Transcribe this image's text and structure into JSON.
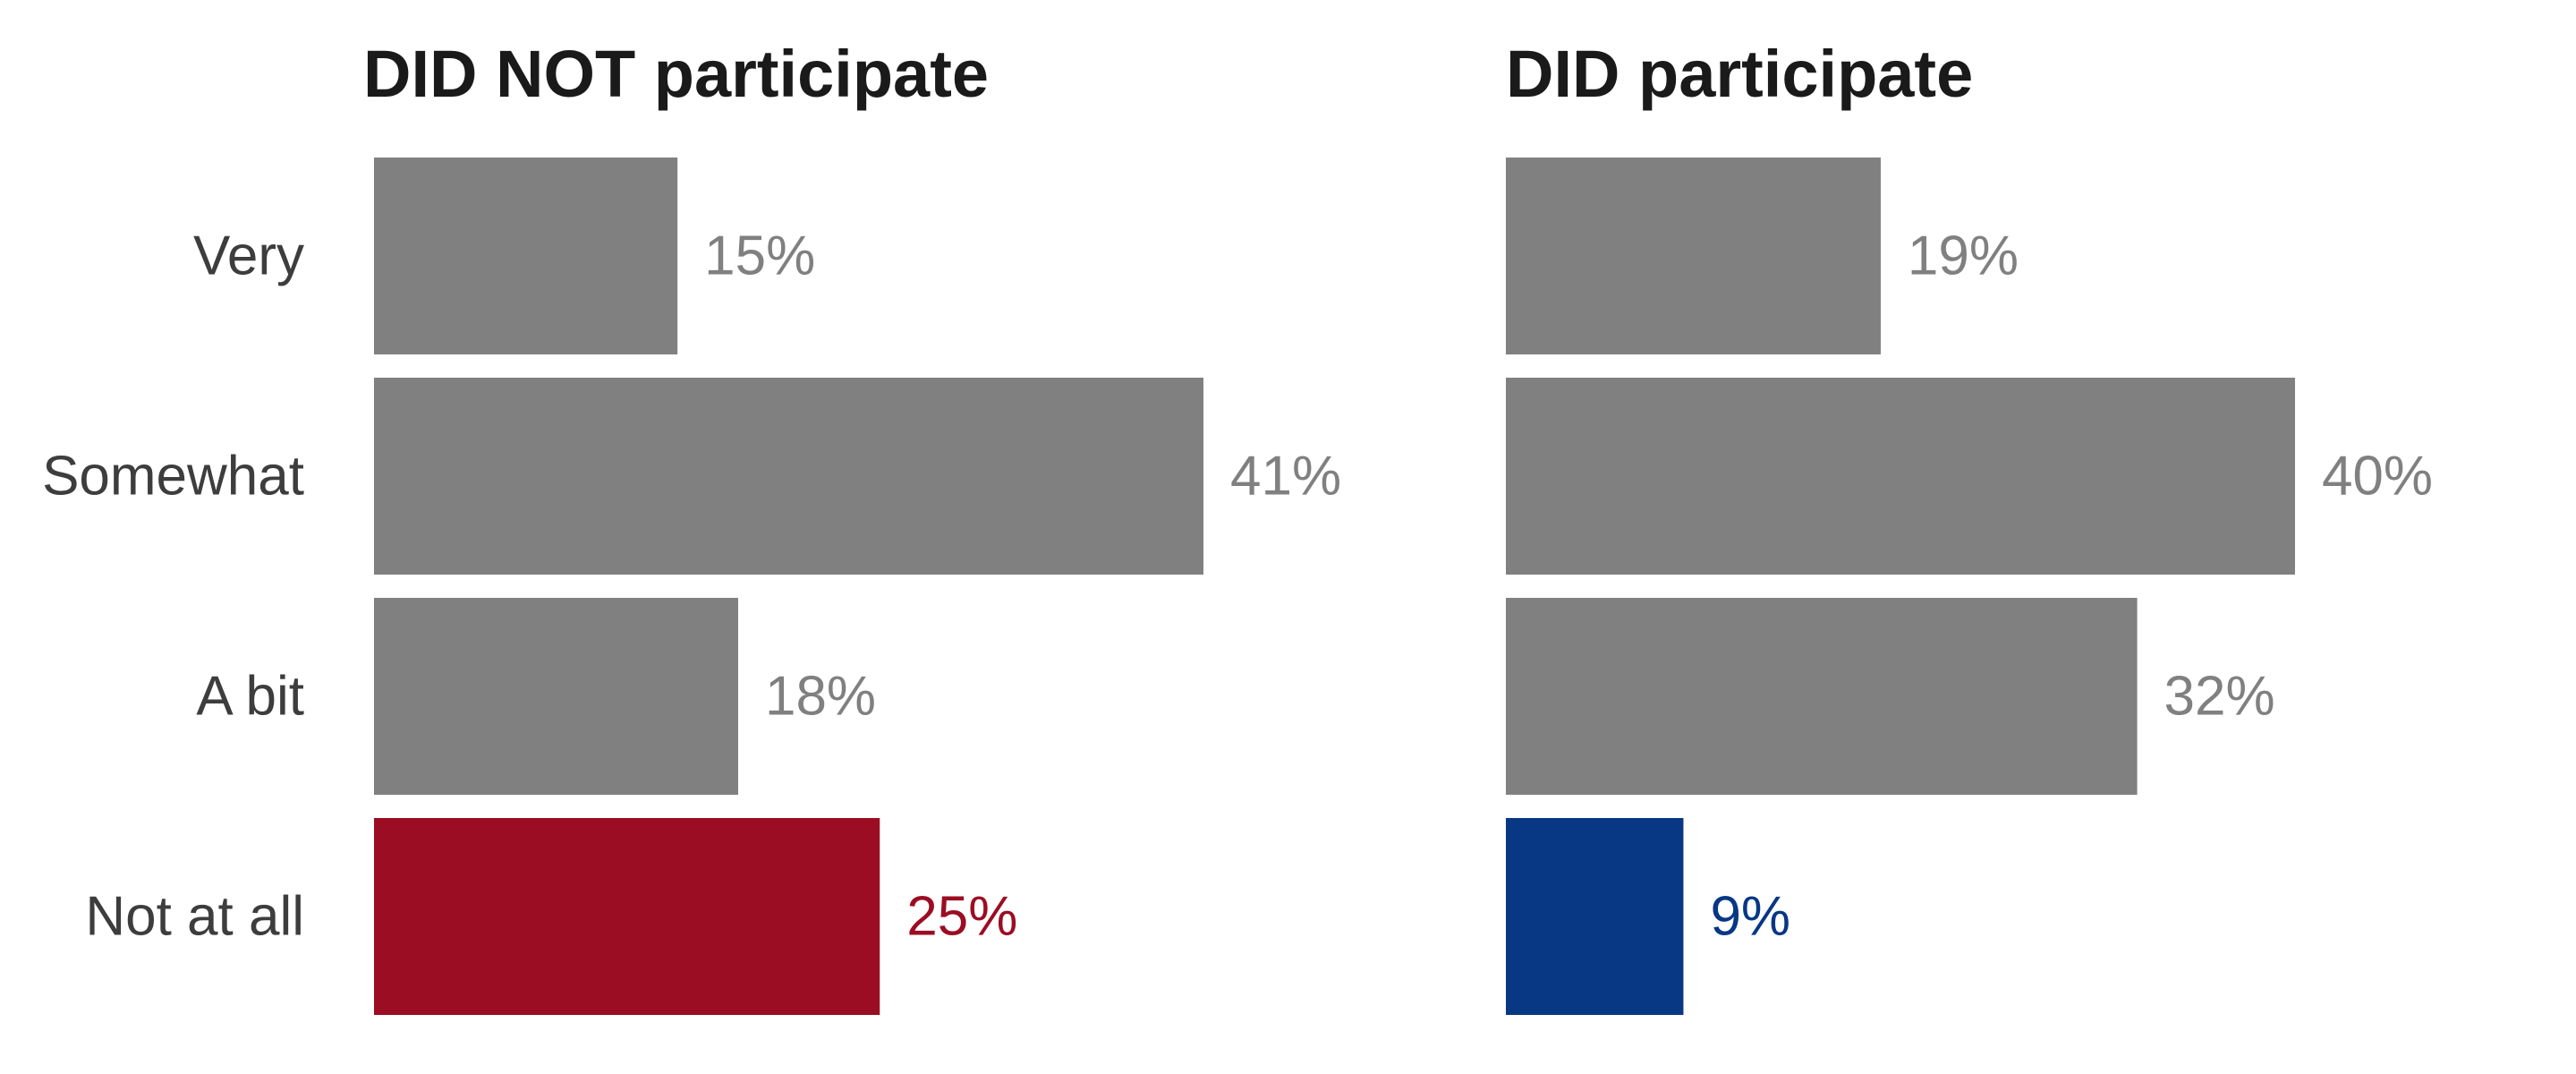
{
  "chart_data": [
    {
      "type": "bar",
      "title": "DID NOT participate",
      "categories": [
        "Very",
        "Somewhat",
        "A bit",
        "Not at all"
      ],
      "values": [
        15,
        41,
        18,
        25
      ],
      "value_labels": [
        "15%",
        "41%",
        "18%",
        "25%"
      ],
      "colors": [
        "#808080",
        "#808080",
        "#808080",
        "#9b0d23"
      ],
      "label_colors": [
        "#808080",
        "#808080",
        "#808080",
        "#9b0d23"
      ],
      "orientation": "horizontal",
      "xlim": [
        0,
        41
      ],
      "grid": false
    },
    {
      "type": "bar",
      "title": "DID participate",
      "categories": [
        "Very",
        "Somewhat",
        "A bit",
        "Not at all"
      ],
      "values": [
        19,
        40,
        32,
        9
      ],
      "value_labels": [
        "19%",
        "40%",
        "32%",
        "9%"
      ],
      "colors": [
        "#808080",
        "#808080",
        "#808080",
        "#083784"
      ],
      "label_colors": [
        "#808080",
        "#808080",
        "#808080",
        "#083784"
      ],
      "orientation": "horizontal",
      "xlim": [
        0,
        41
      ],
      "grid": false
    }
  ]
}
